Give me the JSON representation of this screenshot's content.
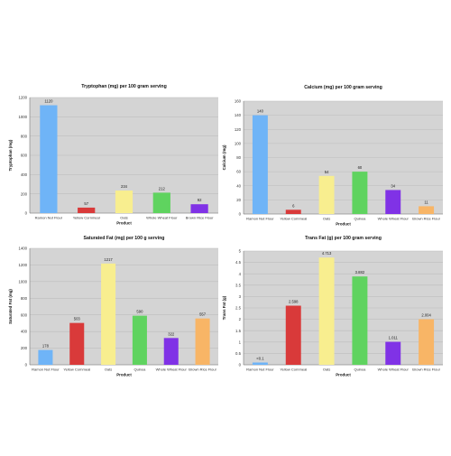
{
  "chart_data": [
    {
      "type": "bar",
      "title": "Tryptophan (mg) per 100 gram serving",
      "xlabel": "Product",
      "ylabel": "Tryptophan (mg)",
      "ylim": [
        0,
        1200
      ],
      "yticks": [
        0,
        200,
        400,
        600,
        800,
        1000,
        1200
      ],
      "grid": true,
      "categories": [
        "Ramon Nut Flour",
        "Yellow Cornmeal",
        "Oats",
        "Whole Wheat Flour",
        "Brown Rice Flour"
      ],
      "values": [
        1120,
        57,
        234,
        212,
        92
      ],
      "labels": [
        "1120",
        "57",
        "234",
        "212",
        "92"
      ],
      "colors": [
        "#6fb4f7",
        "#d93a3a",
        "#f8ee8f",
        "#5fd35f",
        "#8032e6"
      ]
    },
    {
      "type": "bar",
      "title": "Calcium (mg) per 100 gram serving",
      "xlabel": "Product",
      "ylabel": "Calcium (mg)",
      "ylim": [
        0,
        160
      ],
      "yticks": [
        0,
        20,
        40,
        60,
        80,
        100,
        120,
        140,
        160
      ],
      "grid": true,
      "categories": [
        "Ramon Nut Flour",
        "Yellow Cornmeal",
        "Oats",
        "Quinoa",
        "Whole Wheat Flour",
        "Brown Rice Flour"
      ],
      "values": [
        140,
        6,
        54,
        60,
        34,
        11
      ],
      "labels": [
        "140",
        "6",
        "54",
        "60",
        "34",
        "11"
      ],
      "colors": [
        "#6fb4f7",
        "#d93a3a",
        "#f8ee8f",
        "#5fd35f",
        "#8032e6",
        "#f8b566"
      ]
    },
    {
      "type": "bar",
      "title": "Saturated Fat (mg) per 100 g serving",
      "xlabel": "Product",
      "ylabel": "Saturated Fat (mg)",
      "ylim": [
        0,
        1400
      ],
      "yticks": [
        0,
        200,
        400,
        600,
        800,
        1000,
        1200,
        1400
      ],
      "grid": true,
      "categories": [
        "Ramon Nut Flour",
        "Yellow Cornmeal",
        "Oats",
        "Quinoa",
        "Whole Wheat Flour",
        "Brown Rice Flour"
      ],
      "values": [
        178,
        503,
        1217,
        590,
        322,
        557
      ],
      "labels": [
        "178",
        "503",
        "1217",
        "590",
        "322",
        "557"
      ],
      "colors": [
        "#6fb4f7",
        "#d93a3a",
        "#f8ee8f",
        "#5fd35f",
        "#8032e6",
        "#f8b566"
      ]
    },
    {
      "type": "bar",
      "title": "Trans Fat (g) per 100 gram serving",
      "xlabel": "Product",
      "ylabel": "Trans Fat (g)",
      "ylim": [
        0,
        5
      ],
      "yticks": [
        0,
        0.5,
        1,
        1.5,
        2,
        2.5,
        3,
        3.5,
        4,
        4.5,
        5
      ],
      "yticklabels": [
        "0",
        "0.5",
        "1",
        "1.5",
        "2",
        "2.5",
        "3",
        "3.5",
        "4",
        "4.5",
        "5"
      ],
      "grid": true,
      "categories": [
        "Ramon Nut Flour",
        "Yellow Cornmeal",
        "Oats",
        "Quinoa",
        "Whole Wheat Flour",
        "Brown Rice Flour"
      ],
      "values": [
        0.1,
        2.598,
        4.713,
        3.882,
        1.011,
        2.004
      ],
      "labels": [
        "<0.1",
        "2.598",
        "4.713",
        "3.882",
        "1.011",
        "2.004"
      ],
      "colors": [
        "#6fb4f7",
        "#d93a3a",
        "#f8ee8f",
        "#5fd35f",
        "#8032e6",
        "#f8b566"
      ]
    }
  ]
}
